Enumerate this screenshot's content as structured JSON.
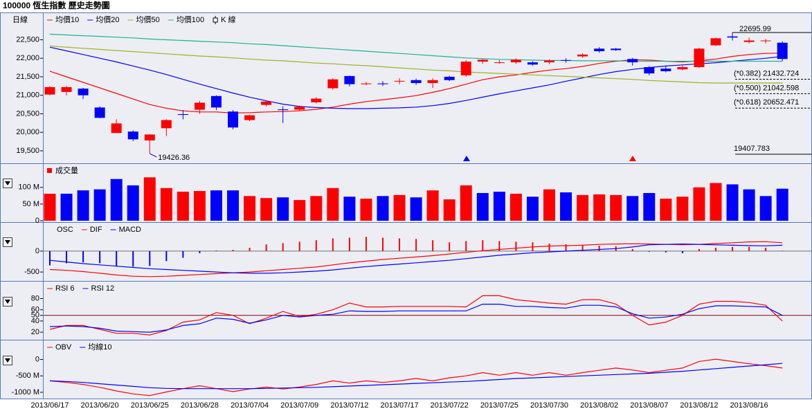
{
  "title": "100000 恆生指數  歷史走勢圖",
  "chart_data": [
    {
      "type": "candlestick",
      "label": "日線",
      "candles": {
        "name": "K 線",
        "up_color": "#ff0000",
        "down_color": "#0000ff",
        "open": [
          21020,
          21090,
          21180,
          20670,
          19980,
          20020,
          19780,
          20110,
          20490,
          20610,
          20980,
          20560,
          20330,
          20740,
          20620,
          20610,
          20810,
          21190,
          21520,
          21300,
          21320,
          21370,
          21410,
          21330,
          21500,
          21540,
          21910,
          21880,
          21890,
          21890,
          21890,
          21950,
          22050,
          22260,
          22260,
          21980,
          21760,
          21720,
          21700,
          21760,
          22350,
          22590,
          22440,
          22470,
          22420
        ],
        "high": [
          21250,
          21250,
          21200,
          20700,
          20350,
          20050,
          19950,
          20350,
          20600,
          20850,
          21000,
          20600,
          20480,
          20860,
          20700,
          20720,
          20950,
          21460,
          21530,
          21360,
          21380,
          21460,
          21450,
          21460,
          21530,
          21950,
          21980,
          21950,
          22000,
          21920,
          21970,
          22000,
          22130,
          22300,
          22280,
          22010,
          21790,
          21780,
          21800,
          22280,
          22560,
          22695.99,
          22560,
          22520,
          22460
        ],
        "low": [
          21000,
          21000,
          20900,
          20380,
          19980,
          19760,
          19426.36,
          19900,
          20350,
          20500,
          20600,
          20080,
          20300,
          20700,
          20250,
          20580,
          20780,
          21150,
          21240,
          21270,
          21250,
          21300,
          21280,
          21200,
          21380,
          21500,
          21850,
          21850,
          21850,
          21800,
          21840,
          21880,
          22010,
          22150,
          22200,
          21800,
          21540,
          21620,
          21680,
          21740,
          22330,
          22480,
          22400,
          22400,
          21920
        ],
        "close": [
          21220,
          21220,
          21000,
          20390,
          20240,
          19810,
          19940,
          20330,
          20470,
          20800,
          20670,
          20130,
          20460,
          20830,
          20600,
          20690,
          20910,
          21430,
          21300,
          21320,
          21300,
          21390,
          21330,
          21410,
          21410,
          21910,
          21960,
          21890,
          21960,
          21830,
          21940,
          21940,
          22100,
          22190,
          22220,
          21890,
          21590,
          21650,
          21760,
          22260,
          22540,
          22560,
          22480,
          22480,
          21980
        ]
      },
      "series": [
        {
          "name": "均價10",
          "color": "#ff0000",
          "values": [
            21650,
            21500,
            21350,
            21200,
            21050,
            20900,
            20750,
            20650,
            20580,
            20550,
            20550,
            20520,
            20530,
            20550,
            20560,
            20580,
            20620,
            20680,
            20760,
            20830,
            20880,
            20930,
            20990,
            21080,
            21180,
            21300,
            21420,
            21500,
            21550,
            21620,
            21680,
            21720,
            21780,
            21860,
            21920,
            21960,
            21950,
            21920,
            21900,
            21930,
            21980,
            22050,
            22100,
            22130,
            22140
          ]
        },
        {
          "name": "均價20",
          "color": "#0000ff",
          "values": [
            22300,
            22200,
            22100,
            22000,
            21900,
            21790,
            21680,
            21560,
            21430,
            21300,
            21180,
            21060,
            20950,
            20850,
            20760,
            20700,
            20670,
            20650,
            20640,
            20640,
            20650,
            20660,
            20680,
            20720,
            20780,
            20860,
            20950,
            21040,
            21120,
            21200,
            21280,
            21380,
            21470,
            21560,
            21640,
            21700,
            21750,
            21790,
            21820,
            21850,
            21880,
            21920,
            21960,
            22000,
            22050
          ]
        },
        {
          "name": "均價50",
          "color": "#a0b020",
          "values": [
            22330,
            22300,
            22270,
            22240,
            22210,
            22180,
            22150,
            22120,
            22090,
            22060,
            22040,
            22010,
            21980,
            21950,
            21930,
            21900,
            21870,
            21850,
            21820,
            21800,
            21770,
            21740,
            21710,
            21680,
            21660,
            21630,
            21610,
            21590,
            21570,
            21550,
            21530,
            21510,
            21490,
            21470,
            21450,
            21430,
            21400,
            21380,
            21360,
            21340,
            21330,
            21330,
            21330,
            21330,
            21330
          ]
        },
        {
          "name": "均價100",
          "color": "#20b090",
          "values": [
            22650,
            22630,
            22610,
            22590,
            22570,
            22550,
            22520,
            22500,
            22480,
            22460,
            22440,
            22420,
            22390,
            22370,
            22340,
            22310,
            22280,
            22250,
            22220,
            22190,
            22160,
            22130,
            22100,
            22070,
            22040,
            22010,
            21990,
            21970,
            21960,
            21950,
            21940,
            21940,
            21930,
            21930,
            21930,
            21920,
            21920,
            21920,
            21920,
            21920,
            21920,
            21920,
            21920,
            21920,
            21920
          ]
        }
      ],
      "ylim": [
        19200,
        23200
      ],
      "yticks": [
        {
          "value": 19500,
          "label": "19,500"
        },
        {
          "value": 20000,
          "label": "20,000"
        },
        {
          "value": 20500,
          "label": "20,500"
        },
        {
          "value": 21000,
          "label": "21,000"
        },
        {
          "value": 21500,
          "label": "21,500"
        },
        {
          "value": 22000,
          "label": "22,000"
        },
        {
          "value": 22500,
          "label": "22,500"
        }
      ],
      "annotations": [
        {
          "text": "22695.99",
          "value": 22695.99,
          "color": "#ff0000",
          "line": "solid"
        },
        {
          "text": "19426.36",
          "value": 19426.36,
          "color": "#0000cc"
        },
        {
          "text": "(*0.382) 21432.724",
          "value": 21432.724,
          "color": "#000000",
          "line": "dashed"
        },
        {
          "text": "(*0.500) 21042.598",
          "value": 21042.598,
          "color": "#000000",
          "line": "dashed"
        },
        {
          "text": "(*0.618) 20652.471",
          "value": 20652.471,
          "color": "#000000",
          "line": "dashed"
        },
        {
          "text": "19407.783",
          "value": 19407.783,
          "color": "#000000",
          "line": "solid"
        }
      ]
    },
    {
      "type": "bar",
      "label": "成交量",
      "color": "#ff0000",
      "values": [
        81,
        81,
        91,
        94,
        125,
        106,
        130,
        98,
        87,
        89,
        91,
        91,
        74,
        68,
        70,
        62,
        74,
        98,
        72,
        66,
        74,
        77,
        70,
        91,
        64,
        106,
        83,
        87,
        81,
        72,
        94,
        85,
        77,
        79,
        77,
        74,
        83,
        66,
        72,
        100,
        113,
        109,
        94,
        74,
        96
      ],
      "colors": [
        "#ff0000",
        "#0000ff",
        "#0000ff",
        "#0000ff",
        "#0000ff",
        "#0000ff",
        "#ff0000",
        "#ff0000",
        "#ff0000",
        "#ff0000",
        "#0000ff",
        "#0000ff",
        "#ff0000",
        "#ff0000",
        "#0000ff",
        "#ff0000",
        "#ff0000",
        "#ff0000",
        "#0000ff",
        "#ff0000",
        "#0000ff",
        "#ff0000",
        "#0000ff",
        "#ff0000",
        "#ff0000",
        "#ff0000",
        "#0000ff",
        "#0000ff",
        "#ff0000",
        "#0000ff",
        "#ff0000",
        "#0000ff",
        "#ff0000",
        "#ff0000",
        "#ff0000",
        "#0000ff",
        "#0000ff",
        "#ff0000",
        "#ff0000",
        "#ff0000",
        "#ff0000",
        "#0000ff",
        "#0000ff",
        "#0000ff",
        "#0000ff"
      ],
      "ylim": [
        0,
        168
      ],
      "yticks": [
        0,
        {
          "value": 50,
          "label": "50 M"
        },
        {
          "value": 100,
          "label": "100 M"
        }
      ]
    },
    {
      "type": "combo",
      "bars": {
        "name": "OSC",
        "up_color": "#ff0000",
        "down_color": "#0000ff",
        "values": [
          -340,
          -290,
          -270,
          -290,
          -355,
          -370,
          -355,
          -240,
          -160,
          -50,
          15,
          30,
          80,
          160,
          190,
          225,
          260,
          305,
          320,
          340,
          320,
          305,
          290,
          260,
          210,
          240,
          260,
          240,
          225,
          210,
          180,
          160,
          145,
          130,
          115,
          50,
          -15,
          -30,
          -50,
          50,
          80,
          100,
          100,
          80,
          10
        ]
      },
      "series": [
        {
          "name": "DIF",
          "color": "#ff0000",
          "values": [
            -440,
            -460,
            -490,
            -530,
            -570,
            -600,
            -610,
            -600,
            -580,
            -560,
            -540,
            -520,
            -500,
            -470,
            -440,
            -410,
            -380,
            -330,
            -280,
            -240,
            -200,
            -170,
            -140,
            -110,
            -70,
            -30,
            10,
            40,
            70,
            100,
            120,
            130,
            140,
            160,
            170,
            175,
            170,
            160,
            150,
            160,
            180,
            200,
            220,
            225,
            200
          ]
        },
        {
          "name": "MACD",
          "color": "#0000ff",
          "values": [
            -220,
            -260,
            -300,
            -330,
            -360,
            -390,
            -420,
            -440,
            -460,
            -480,
            -500,
            -520,
            -530,
            -530,
            -520,
            -500,
            -480,
            -450,
            -410,
            -370,
            -340,
            -310,
            -280,
            -250,
            -220,
            -180,
            -140,
            -100,
            -70,
            -40,
            -20,
            0,
            20,
            40,
            60,
            100,
            150,
            160,
            170,
            160,
            150,
            140,
            130,
            125,
            140
          ]
        }
      ],
      "ylim": [
        -680,
        660
      ],
      "yticks": [
        -500,
        0
      ],
      "reference_line": {
        "value": 0,
        "color": "#707070"
      }
    },
    {
      "type": "line",
      "series": [
        {
          "name": "RSI 6",
          "color": "#ff0000",
          "values": [
            25,
            32,
            32,
            25,
            18,
            18,
            15,
            23,
            38,
            42,
            55,
            50,
            35,
            45,
            57,
            48,
            52,
            60,
            72,
            65,
            65,
            66,
            66,
            66,
            66,
            65,
            85,
            85,
            78,
            75,
            72,
            70,
            78,
            78,
            70,
            50,
            33,
            38,
            50,
            70,
            75,
            75,
            73,
            68,
            40
          ]
        },
        {
          "name": "RSI 12",
          "color": "#0000ff",
          "values": [
            30,
            31,
            30,
            27,
            22,
            21,
            20,
            24,
            32,
            35,
            45,
            43,
            36,
            42,
            50,
            47,
            50,
            52,
            58,
            57,
            57,
            58,
            58,
            58,
            58,
            58,
            70,
            70,
            66,
            66,
            64,
            63,
            68,
            68,
            65,
            53,
            45,
            47,
            52,
            62,
            67,
            67,
            66,
            65,
            50
          ]
        }
      ],
      "ylim": [
        9,
        109
      ],
      "yticks": [
        20,
        40,
        50,
        60,
        80
      ],
      "reference_line": {
        "value": 50,
        "color": "#800000"
      }
    },
    {
      "type": "line",
      "categories": [
        "2013/06/17",
        null,
        null,
        "2013/06/20",
        null,
        null,
        "2013/06/25",
        null,
        null,
        "2013/06/28",
        null,
        null,
        "2013/07/04",
        null,
        null,
        "2013/07/09",
        null,
        null,
        "2013/07/12",
        null,
        null,
        "2013/07/17",
        null,
        null,
        "2013/07/22",
        null,
        null,
        "2013/07/25",
        null,
        null,
        "2013/07/30",
        null,
        null,
        "2013/08/02",
        null,
        null,
        "2013/08/07",
        null,
        null,
        "2013/08/12",
        null,
        null,
        "2013/08/16",
        null,
        null
      ],
      "series": [
        {
          "name": "OBV",
          "color": "#ff0000",
          "values": [
            -650,
            -700,
            -760,
            -850,
            -960,
            -1050,
            -1100,
            -990,
            -890,
            -800,
            -890,
            -980,
            -900,
            -840,
            -900,
            -840,
            -760,
            -650,
            -720,
            -650,
            -700,
            -650,
            -580,
            -650,
            -560,
            -500,
            -400,
            -480,
            -400,
            -480,
            -400,
            -480,
            -400,
            -330,
            -260,
            -320,
            -400,
            -330,
            -260,
            -60,
            10,
            -60,
            -130,
            -190,
            -260
          ]
        },
        {
          "name": "均線10",
          "color": "#0000ff",
          "values": [
            -650,
            -670,
            -700,
            -740,
            -780,
            -820,
            -860,
            -880,
            -890,
            -890,
            -890,
            -890,
            -890,
            -880,
            -870,
            -860,
            -850,
            -830,
            -810,
            -790,
            -770,
            -750,
            -730,
            -710,
            -690,
            -670,
            -640,
            -610,
            -580,
            -560,
            -540,
            -520,
            -500,
            -480,
            -460,
            -440,
            -420,
            -390,
            -360,
            -320,
            -280,
            -240,
            -200,
            -160,
            -120
          ]
        }
      ],
      "ylim": [
        -1170,
        560
      ],
      "yticks": [
        {
          "value": -1000,
          "label": "-1000 M"
        },
        {
          "value": -500,
          "label": "-500 M"
        },
        0
      ]
    }
  ]
}
